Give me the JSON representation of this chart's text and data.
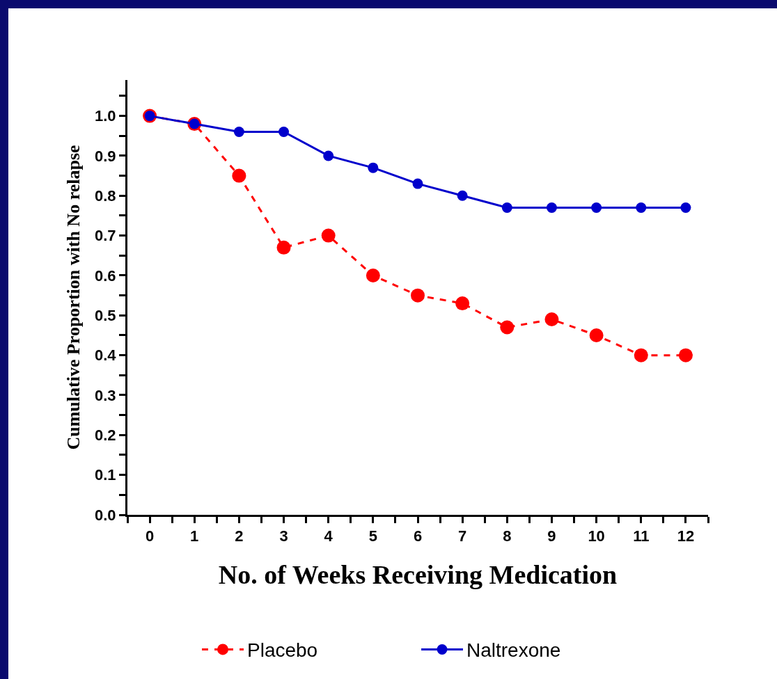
{
  "chart_data": {
    "type": "line",
    "xlabel": "No. of Weeks Receiving Medication",
    "ylabel": "Cumulative Proportion with No relapse",
    "x": [
      0,
      1,
      2,
      3,
      4,
      5,
      6,
      7,
      8,
      9,
      10,
      11,
      12
    ],
    "series": [
      {
        "name": "Placebo",
        "color": "#ff0000",
        "line_style": "dashed",
        "values": [
          1.0,
          0.98,
          0.85,
          0.67,
          0.7,
          0.6,
          0.55,
          0.53,
          0.47,
          0.49,
          0.45,
          0.4,
          0.4
        ]
      },
      {
        "name": "Naltrexone",
        "color": "#0000cc",
        "line_style": "solid",
        "values": [
          1.0,
          0.98,
          0.96,
          0.96,
          0.9,
          0.87,
          0.83,
          0.8,
          0.77,
          0.77,
          0.77,
          0.77,
          0.77
        ]
      }
    ],
    "xlim": [
      -0.5,
      12.5
    ],
    "xticks": [
      {
        "value": -0.5,
        "label": null
      },
      0,
      {
        "value": 0.5,
        "label": null
      },
      1,
      {
        "value": 1.5,
        "label": null
      },
      2,
      {
        "value": 2.5,
        "label": null
      },
      3,
      {
        "value": 3.5,
        "label": null
      },
      4,
      {
        "value": 4.5,
        "label": null
      },
      5,
      {
        "value": 5.5,
        "label": null
      },
      6,
      {
        "value": 6.5,
        "label": null
      },
      7,
      {
        "value": 7.5,
        "label": null
      },
      8,
      {
        "value": 8.5,
        "label": null
      },
      9,
      {
        "value": 9.5,
        "label": null
      },
      10,
      {
        "value": 10.5,
        "label": null
      },
      11,
      {
        "value": 11.5,
        "label": null
      },
      12,
      {
        "value": 12.5,
        "label": null
      }
    ],
    "ylim": [
      0,
      1.09
    ],
    "yticks": [
      {
        "value": 0,
        "label": "0.0"
      },
      {
        "value": 0.05,
        "label": null
      },
      0.1,
      {
        "value": 0.15,
        "label": null
      },
      0.2,
      {
        "value": 0.25,
        "label": null
      },
      0.3,
      {
        "value": 0.35,
        "label": null
      },
      0.4,
      {
        "value": 0.45,
        "label": null
      },
      0.5,
      {
        "value": 0.55,
        "label": null
      },
      0.6,
      {
        "value": 0.65,
        "label": null
      },
      0.7,
      {
        "value": 0.75,
        "label": null
      },
      0.8,
      {
        "value": 0.85,
        "label": null
      },
      0.9,
      {
        "value": 0.95,
        "label": null
      },
      {
        "value": 1.0,
        "label": "1.0"
      },
      {
        "value": 1.05,
        "label": null
      }
    ],
    "grid": false,
    "legend": "bottom",
    "marker": "circle"
  }
}
